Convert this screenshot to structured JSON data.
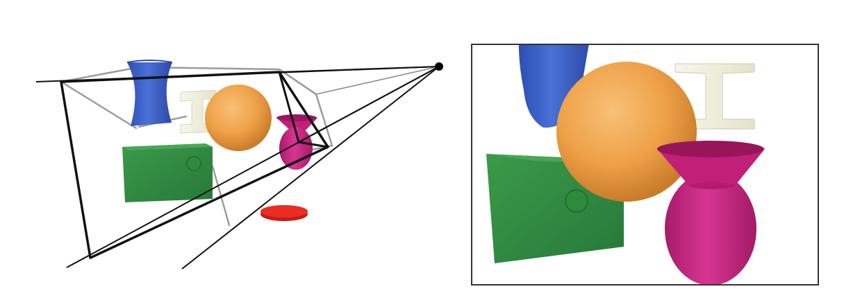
{
  "figure": {
    "left_panel": {
      "role": "perspective view frustum illustration",
      "objects": [
        "blue-vase",
        "ivory-i-beam",
        "orange-sphere",
        "magenta-vase",
        "green-cube",
        "red-disc"
      ]
    },
    "right_panel": {
      "role": "rendered camera view",
      "objects": [
        "blue-vase",
        "ivory-i-beam",
        "orange-sphere",
        "green-cube",
        "magenta-vase"
      ]
    },
    "colors": {
      "background": "#ffffff",
      "frustum": "#111111",
      "frustum_back": "#999999",
      "blue_vase": "#3b5fc4",
      "ivory_beam": "#f1f1de",
      "orange_sphere": "#f0a24a",
      "magenta_vase": "#c8267f",
      "green_cube": "#2e8b3b",
      "red_disc": "#e0261e",
      "panel_border": "#333333"
    }
  }
}
